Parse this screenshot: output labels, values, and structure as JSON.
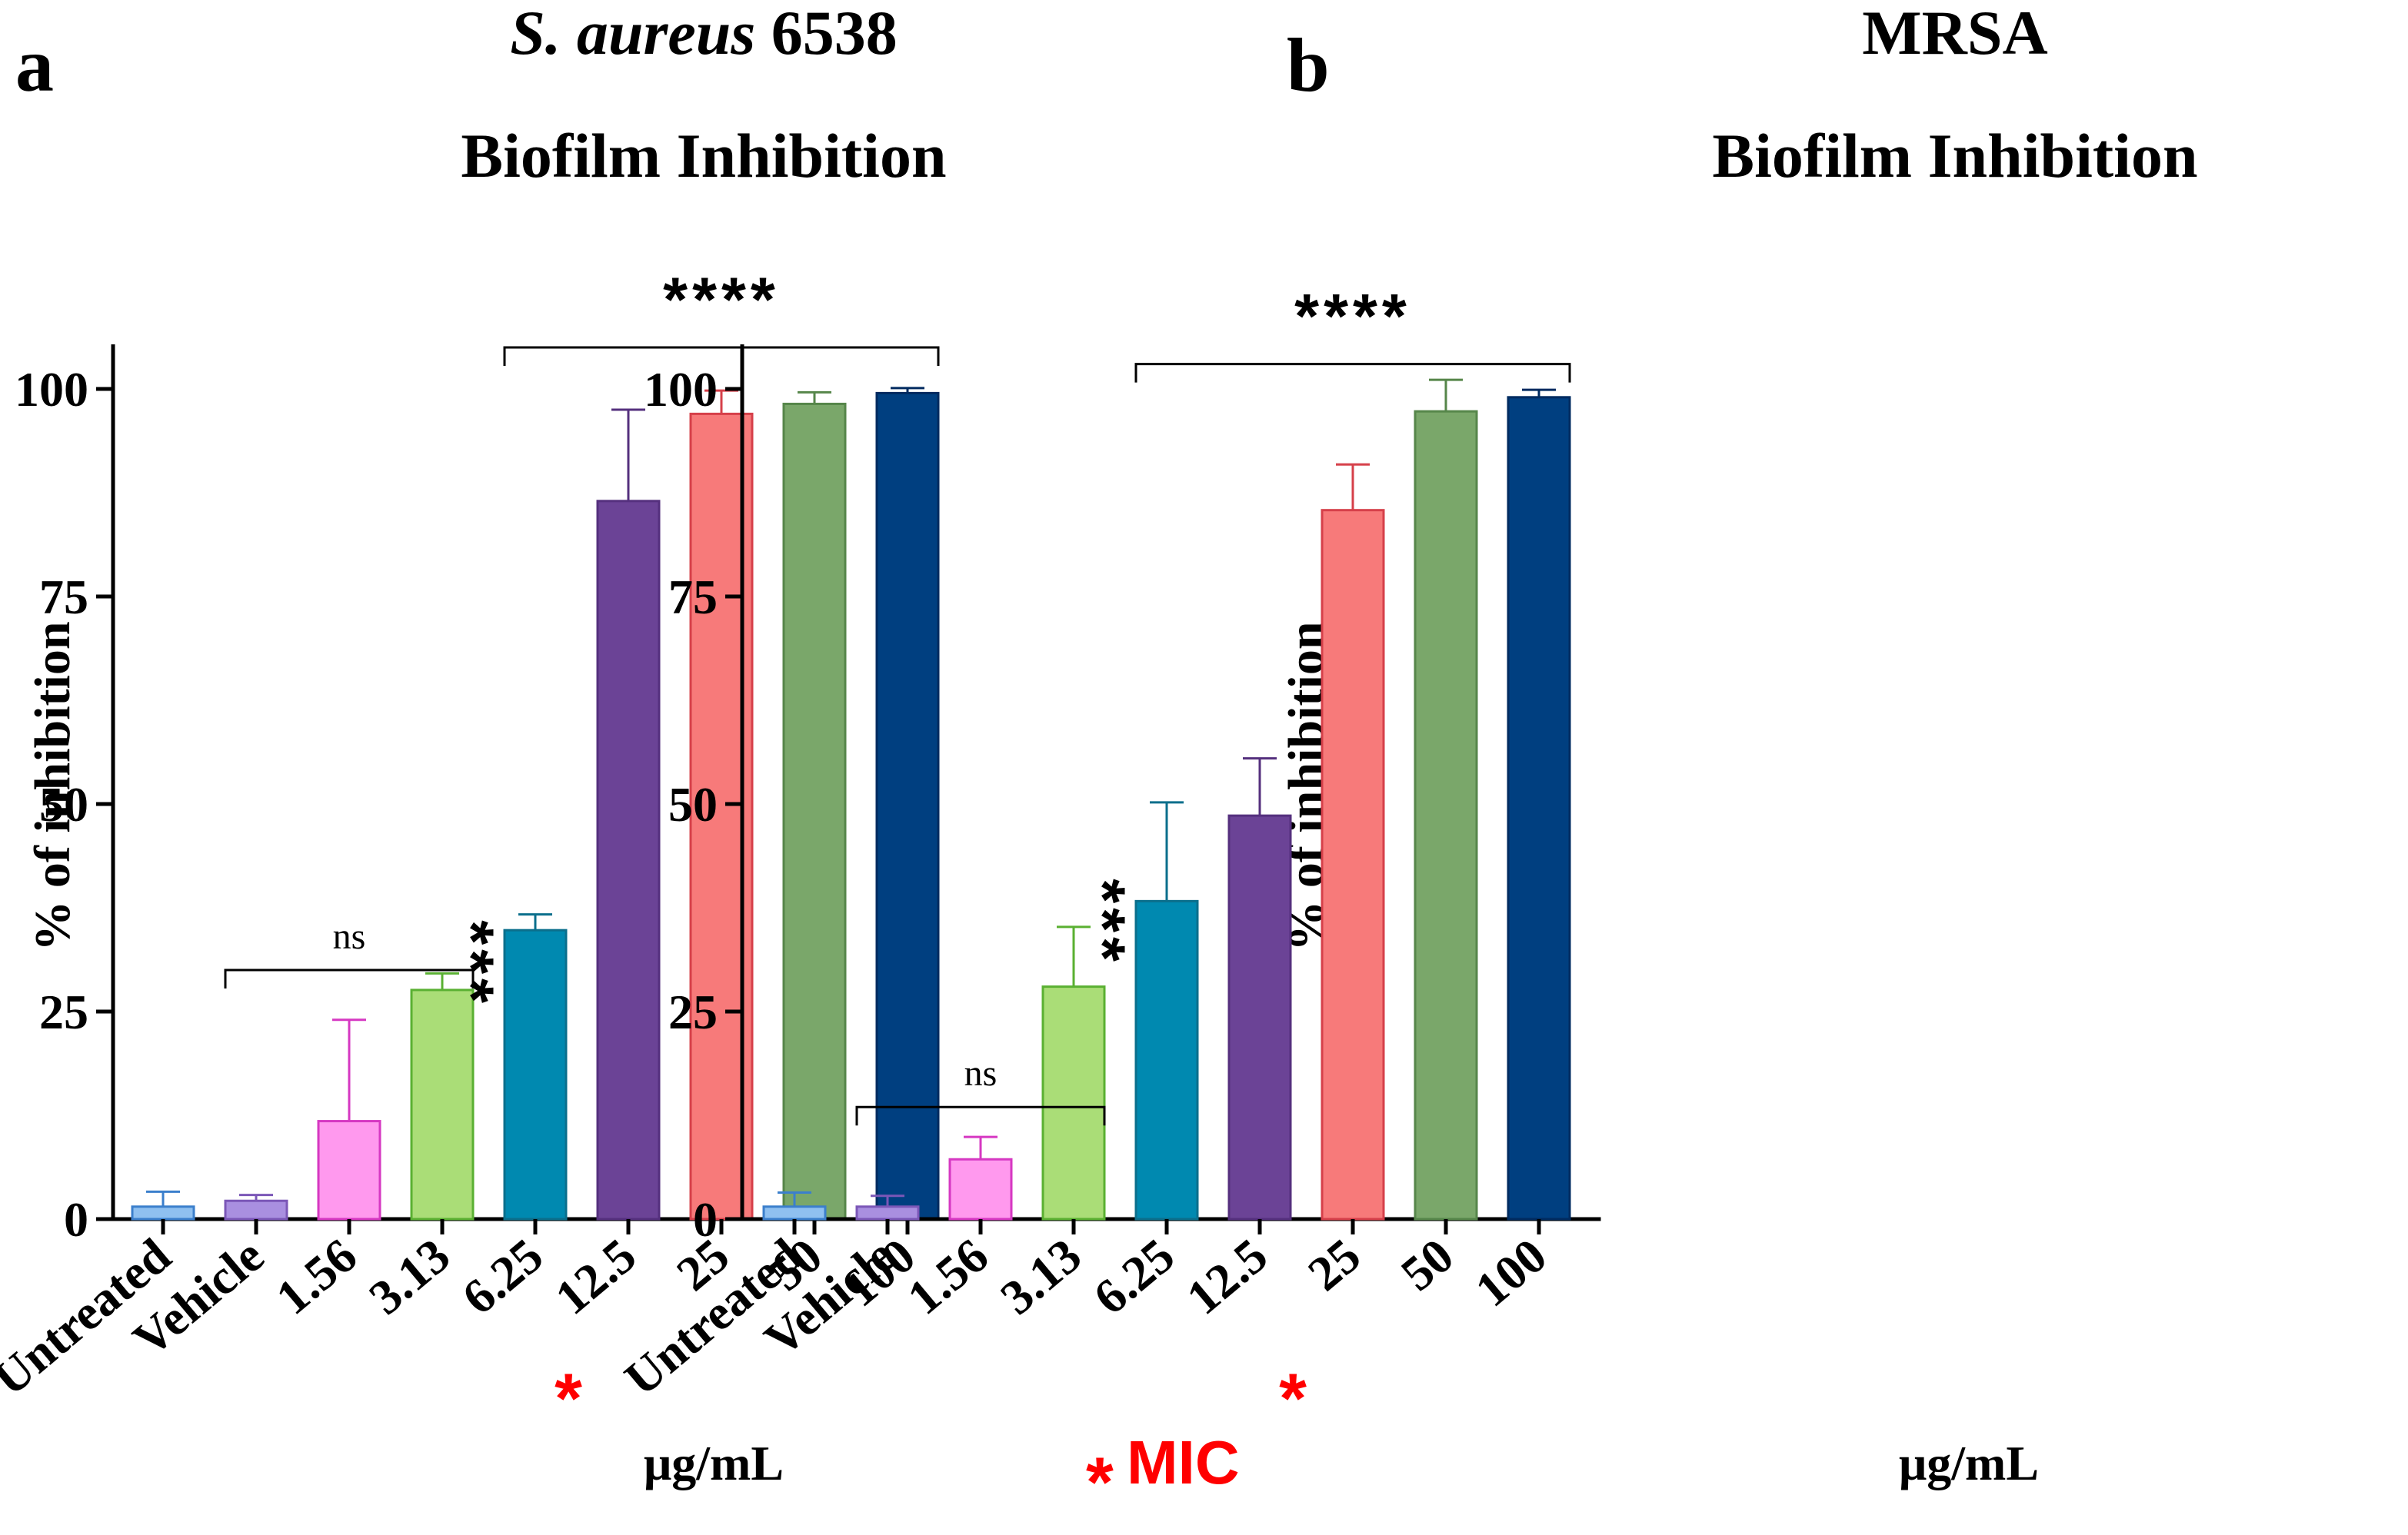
{
  "figure": {
    "mic_legend": {
      "star": "*",
      "label": "MIC",
      "color": "#ff0000"
    }
  },
  "chart_data": [
    {
      "type": "bar",
      "panel_label": "a",
      "title_italic": "S. aureus",
      "title_rest": " 6538",
      "subtitle": "Biofilm Inhibition",
      "ylabel": "% of inhibition",
      "xlabel": "μg/mL",
      "ylim": [
        0,
        100
      ],
      "yticks": [
        0,
        25,
        50,
        75,
        100
      ],
      "categories": [
        "Untreated",
        "Vehicle",
        "1.56",
        "3.13",
        "6.25",
        "12.5",
        "25",
        "50",
        "100"
      ],
      "values": [
        1.5,
        2.2,
        11.8,
        27.6,
        34.8,
        86.5,
        97.0,
        98.2,
        99.5
      ],
      "errors": [
        1.8,
        0.7,
        12.2,
        2.0,
        1.9,
        11.0,
        2.8,
        1.4,
        0.6
      ],
      "fill_colors": [
        "#8fc0f0",
        "#a98fe0",
        "#ff99ee",
        "#aadd77",
        "#0089b0",
        "#6b4396",
        "#f77a7a",
        "#7aa76a",
        "#003f80"
      ],
      "edge_colors": [
        "#3b7fcc",
        "#7b57b7",
        "#d638c2",
        "#5ab032",
        "#0b6f8c",
        "#55307e",
        "#d6404a",
        "#56864a",
        "#002b60"
      ],
      "mic_index": 5,
      "annotations": [
        {
          "text": "ns",
          "bracket_from": 1,
          "bracket_to": 3,
          "y": 30
        },
        {
          "text": "***",
          "bar": 3,
          "y": 36
        },
        {
          "text": "****",
          "bracket_from": 4,
          "bracket_to": 8,
          "y": 105
        }
      ]
    },
    {
      "type": "bar",
      "panel_label": "b",
      "title_italic": "",
      "title_rest": "MRSA",
      "subtitle": "Biofilm Inhibition",
      "ylabel": "% of inhibition",
      "xlabel": "μg/mL",
      "ylim": [
        0,
        100
      ],
      "yticks": [
        0,
        25,
        50,
        75,
        100
      ],
      "categories": [
        "Untreated",
        "Vehicle",
        "1.56",
        "3.13",
        "6.25",
        "12.5",
        "25",
        "50",
        "100"
      ],
      "values": [
        1.5,
        1.5,
        7.2,
        28.0,
        38.3,
        48.6,
        85.4,
        97.3,
        99.0
      ],
      "errors": [
        1.7,
        1.3,
        2.7,
        7.2,
        11.9,
        6.9,
        5.5,
        3.8,
        0.9
      ],
      "fill_colors": [
        "#8fc0f0",
        "#a98fe0",
        "#ff99ee",
        "#aadd77",
        "#0089b0",
        "#6b4396",
        "#f77a7a",
        "#7aa76a",
        "#003f80"
      ],
      "edge_colors": [
        "#3b7fcc",
        "#7b57b7",
        "#d638c2",
        "#5ab032",
        "#0b6f8c",
        "#55307e",
        "#d6404a",
        "#56864a",
        "#002b60"
      ],
      "mic_index": 6,
      "annotations": [
        {
          "text": "ns",
          "bracket_from": 1,
          "bracket_to": 3,
          "y": 13.5
        },
        {
          "text": "***",
          "bar": 3,
          "y": 41
        },
        {
          "text": "****",
          "bracket_from": 4,
          "bracket_to": 8,
          "y": 103
        }
      ]
    }
  ]
}
